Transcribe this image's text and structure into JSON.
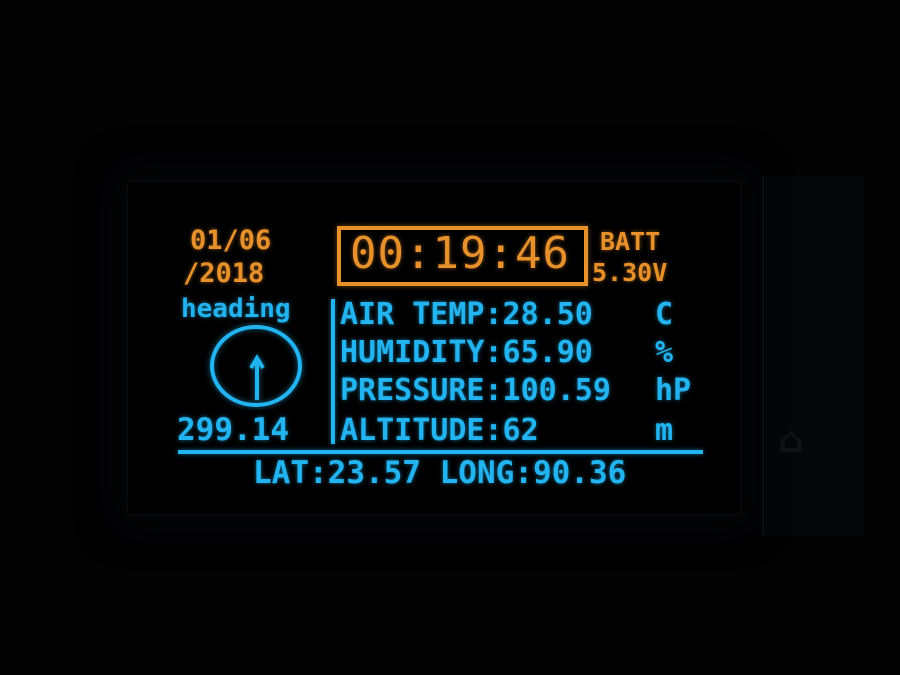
{
  "display": {
    "date_line1": "01/06",
    "date_line2": "/2018",
    "clock": "00:19:46",
    "battery_label": "BATT",
    "battery_value": "5.30V",
    "heading_label": "heading",
    "heading_value": "299.14",
    "readings": [
      {
        "label": "AIR TEMP:28.50",
        "unit": "C"
      },
      {
        "label": "HUMIDITY:65.90",
        "unit": "%"
      },
      {
        "label": "PRESSURE:100.59",
        "unit": "hP"
      },
      {
        "label": "ALTITUDE:62",
        "unit": "m"
      }
    ],
    "latlong": "LAT:23.57 LONG:90.36"
  },
  "colors": {
    "amber": "#e8902a",
    "cyan": "#22b4f0",
    "background": "#000000"
  },
  "icons": {
    "compass": "compass-icon"
  }
}
